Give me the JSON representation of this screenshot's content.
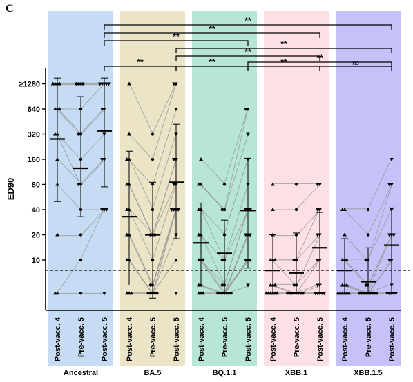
{
  "panel_label": "C",
  "chart_data": {
    "type": "scatter",
    "ylabel": "ED90",
    "yscale": "log2",
    "ylim": [
      2.5,
      2000
    ],
    "detection_limit": 7.5,
    "y_ticks": [
      {
        "value": 10,
        "label": "10"
      },
      {
        "value": 20,
        "label": "20"
      },
      {
        "value": 40,
        "label": "40"
      },
      {
        "value": 80,
        "label": "80"
      },
      {
        "value": 160,
        "label": "160"
      },
      {
        "value": 320,
        "label": "320"
      },
      {
        "value": 640,
        "label": "640"
      },
      {
        "value": 1280,
        "label": "≥1280"
      }
    ],
    "groups": [
      {
        "name": "Ancestral",
        "color": "#c5dcf4",
        "categories": [
          "Post-vacc. 4",
          "Pre-vacc. 5",
          "Post-vacc. 5"
        ],
        "medians": [
          280,
          125,
          350
        ],
        "ranges": [
          [
            50,
            1500
          ],
          [
            33,
            900
          ],
          [
            75,
            1500
          ]
        ],
        "points": [
          [
            1280,
            1280,
            1280,
            1280,
            640,
            640,
            640,
            320,
            320,
            160,
            80,
            20,
            4,
            4
          ],
          [
            1280,
            1280,
            1280,
            1280,
            640,
            320,
            320,
            160,
            80,
            80,
            40,
            20,
            10,
            4
          ],
          [
            1280,
            1280,
            1280,
            1280,
            1280,
            640,
            640,
            320,
            160,
            160,
            40,
            40,
            40,
            4
          ]
        ]
      },
      {
        "name": "BA.5",
        "color": "#ebe4c6",
        "categories": [
          "Post-vacc. 4",
          "Pre-vacc. 5",
          "Post-vacc. 5"
        ],
        "medians": [
          33,
          20,
          85
        ],
        "ranges": [
          [
            5,
            200
          ],
          [
            3.5,
            85
          ],
          [
            18,
            420
          ]
        ],
        "points": [
          [
            1280,
            320,
            160,
            160,
            80,
            80,
            40,
            40,
            20,
            20,
            10,
            10,
            4,
            4,
            4
          ],
          [
            320,
            160,
            80,
            40,
            20,
            20,
            20,
            10,
            5,
            5,
            4,
            4,
            4,
            4,
            4
          ],
          [
            1280,
            1280,
            640,
            320,
            160,
            160,
            80,
            80,
            40,
            40,
            40,
            40,
            20,
            10,
            4
          ]
        ]
      },
      {
        "name": "BQ.1.1",
        "color": "#b7e6d6",
        "categories": [
          "Post-vacc. 4",
          "Pre-vacc. 5",
          "Post-vacc. 5"
        ],
        "medians": [
          16,
          12,
          39
        ],
        "ranges": [
          [
            5,
            48
          ],
          [
            4,
            30
          ],
          [
            8,
            165
          ]
        ],
        "points": [
          [
            160,
            80,
            80,
            40,
            40,
            20,
            20,
            10,
            10,
            10,
            5,
            5,
            4,
            4,
            4
          ],
          [
            80,
            40,
            40,
            20,
            10,
            10,
            5,
            5,
            4,
            4,
            4,
            4,
            4,
            4,
            4
          ],
          [
            640,
            640,
            320,
            160,
            80,
            40,
            40,
            40,
            20,
            20,
            20,
            10,
            10,
            10,
            5
          ]
        ]
      },
      {
        "name": "XBB.1",
        "color": "#fde0e3",
        "categories": [
          "Post-vacc. 4",
          "Pre-vacc. 5",
          "Post-vacc. 5"
        ],
        "medians": [
          7.5,
          7,
          14
        ],
        "ranges": [
          [
            4,
            20
          ],
          [
            4,
            21
          ],
          [
            4,
            37
          ]
        ],
        "points": [
          [
            80,
            40,
            20,
            10,
            10,
            10,
            5,
            5,
            5,
            4,
            4,
            4,
            4,
            4,
            4
          ],
          [
            80,
            40,
            20,
            10,
            10,
            5,
            5,
            4,
            4,
            4,
            4,
            4,
            4,
            4,
            4
          ],
          [
            80,
            80,
            40,
            40,
            20,
            20,
            10,
            10,
            5,
            5,
            4,
            4,
            4,
            4,
            4
          ]
        ]
      },
      {
        "name": "XBB.1.5",
        "color": "#c4c2f8",
        "categories": [
          "Post-vacc. 4",
          "Pre-vacc. 5",
          "Post-vacc. 5"
        ],
        "medians": [
          7.5,
          5.5,
          15
        ],
        "ranges": [
          [
            4,
            18
          ],
          [
            4,
            14
          ],
          [
            4,
            42
          ]
        ],
        "points": [
          [
            40,
            40,
            20,
            10,
            10,
            10,
            5,
            5,
            5,
            4,
            4,
            4,
            4,
            4,
            4
          ],
          [
            40,
            20,
            10,
            10,
            5,
            5,
            4,
            4,
            4,
            4,
            4,
            4,
            4,
            4,
            4
          ],
          [
            160,
            80,
            80,
            40,
            20,
            20,
            20,
            10,
            10,
            5,
            4,
            4,
            4,
            4,
            4
          ]
        ]
      }
    ],
    "comparisons": [
      {
        "from": [
          0,
          2
        ],
        "to": [
          4,
          2
        ],
        "label": "**"
      },
      {
        "from": [
          0,
          2
        ],
        "to": [
          3,
          2
        ],
        "label": "**"
      },
      {
        "from": [
          0,
          2
        ],
        "to": [
          2,
          2
        ],
        "label": "**"
      },
      {
        "from": [
          1,
          2
        ],
        "to": [
          4,
          2
        ],
        "label": "**"
      },
      {
        "from": [
          1,
          2
        ],
        "to": [
          3,
          2
        ],
        "label": "**"
      },
      {
        "from": [
          2,
          2
        ],
        "to": [
          4,
          2
        ],
        "label": "**"
      },
      {
        "from": [
          0,
          2
        ],
        "to": [
          1,
          2
        ],
        "label": "**"
      },
      {
        "from": [
          1,
          2
        ],
        "to": [
          2,
          2
        ],
        "label": "**"
      },
      {
        "from": [
          2,
          2
        ],
        "to": [
          3,
          2
        ],
        "label": "**"
      },
      {
        "from": [
          3,
          2
        ],
        "to": [
          4,
          2
        ],
        "label": "ns"
      }
    ]
  }
}
